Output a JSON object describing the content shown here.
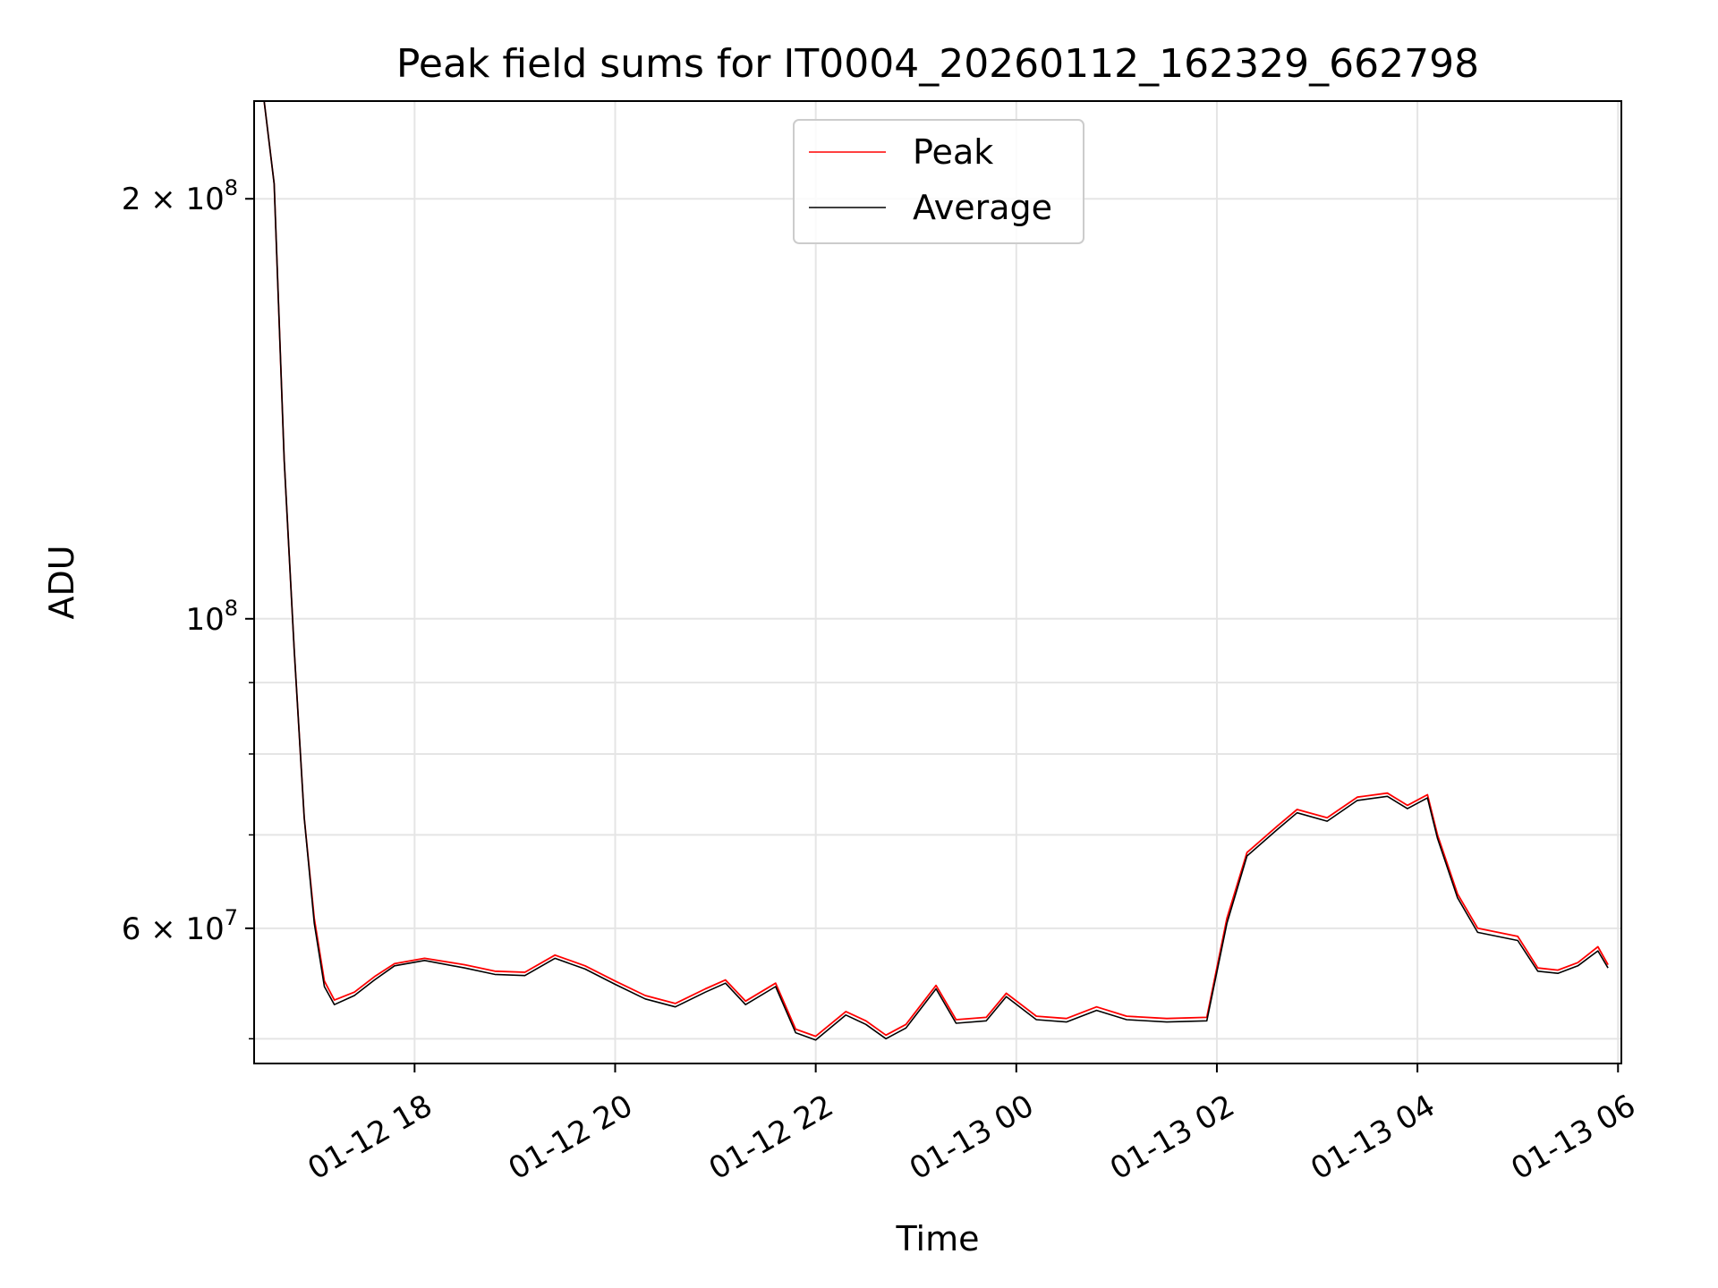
{
  "chart_data": {
    "type": "line",
    "title": "Peak field sums for IT0004_20260112_162329_662798",
    "xlabel": "Time",
    "ylabel": "ADU",
    "yscale": "log",
    "ylim": [
      48000000,
      235000000
    ],
    "xlim": [
      "2026-01-12 16:24",
      "2026-01-13 06:02"
    ],
    "grid": true,
    "legend_position": "top-center",
    "x_ticks": [
      "01-12 18",
      "01-12 20",
      "01-12 22",
      "01-13 00",
      "01-13 02",
      "01-13 04",
      "01-13 06"
    ],
    "x_tick_times": [
      "2026-01-12 18:00",
      "2026-01-12 20:00",
      "2026-01-12 22:00",
      "2026-01-13 00:00",
      "2026-01-13 02:00",
      "2026-01-13 04:00",
      "2026-01-13 06:00"
    ],
    "y_ticks_major": [
      {
        "value": 200000000,
        "mantissa": "2",
        "exp": "8"
      },
      {
        "value": 100000000,
        "mantissa": "",
        "exp": "8"
      },
      {
        "value": 60000000,
        "mantissa": "6",
        "exp": "7"
      }
    ],
    "y_ticks_minor": [
      50000000,
      70000000,
      80000000,
      90000000
    ],
    "series": [
      {
        "name": "Peak",
        "color": "#ff0000",
        "x": [
          "2026-01-12 16:30",
          "2026-01-12 16:36",
          "2026-01-12 16:42",
          "2026-01-12 16:48",
          "2026-01-12 16:54",
          "2026-01-12 17:00",
          "2026-01-12 17:06",
          "2026-01-12 17:12",
          "2026-01-12 17:24",
          "2026-01-12 17:36",
          "2026-01-12 17:48",
          "2026-01-12 18:06",
          "2026-01-12 18:30",
          "2026-01-12 18:48",
          "2026-01-12 19:06",
          "2026-01-12 19:24",
          "2026-01-12 19:42",
          "2026-01-12 20:00",
          "2026-01-12 20:18",
          "2026-01-12 20:36",
          "2026-01-12 20:54",
          "2026-01-12 21:06",
          "2026-01-12 21:18",
          "2026-01-12 21:36",
          "2026-01-12 21:48",
          "2026-01-12 22:00",
          "2026-01-12 22:18",
          "2026-01-12 22:30",
          "2026-01-12 22:42",
          "2026-01-12 22:54",
          "2026-01-12 23:12",
          "2026-01-12 23:24",
          "2026-01-12 23:42",
          "2026-01-12 23:54",
          "2026-01-13 00:12",
          "2026-01-13 00:30",
          "2026-01-13 00:48",
          "2026-01-13 01:06",
          "2026-01-13 01:30",
          "2026-01-13 01:54",
          "2026-01-13 02:06",
          "2026-01-13 02:18",
          "2026-01-13 02:36",
          "2026-01-13 02:48",
          "2026-01-13 03:06",
          "2026-01-13 03:24",
          "2026-01-13 03:42",
          "2026-01-13 03:54",
          "2026-01-13 04:06",
          "2026-01-13 04:12",
          "2026-01-13 04:24",
          "2026-01-13 04:36",
          "2026-01-13 05:00",
          "2026-01-13 05:12",
          "2026-01-13 05:24",
          "2026-01-13 05:36",
          "2026-01-13 05:48",
          "2026-01-13 05:54"
        ],
        "values": [
          235000000,
          205000000,
          130000000,
          95000000,
          72000000,
          61000000,
          55000000,
          53300000,
          54000000,
          55400000,
          56600000,
          57100000,
          56500000,
          55900000,
          55800000,
          57400000,
          56400000,
          55000000,
          53700000,
          53000000,
          54300000,
          55100000,
          53200000,
          54800000,
          50800000,
          50200000,
          52300000,
          51500000,
          50300000,
          51200000,
          54600000,
          51600000,
          51800000,
          53900000,
          51900000,
          51700000,
          52700000,
          51900000,
          51700000,
          51800000,
          61000000,
          68000000,
          71000000,
          73000000,
          72000000,
          74500000,
          75000000,
          73500000,
          74800000,
          70000000,
          63500000,
          60000000,
          59200000,
          56200000,
          56000000,
          56700000,
          58200000,
          56500000
        ]
      },
      {
        "name": "Average",
        "color": "#000000",
        "x": [
          "2026-01-12 16:30",
          "2026-01-12 16:36",
          "2026-01-12 16:42",
          "2026-01-12 16:48",
          "2026-01-12 16:54",
          "2026-01-12 17:00",
          "2026-01-12 17:06",
          "2026-01-12 17:12",
          "2026-01-12 17:24",
          "2026-01-12 17:36",
          "2026-01-12 17:48",
          "2026-01-12 18:06",
          "2026-01-12 18:30",
          "2026-01-12 18:48",
          "2026-01-12 19:06",
          "2026-01-12 19:24",
          "2026-01-12 19:42",
          "2026-01-12 20:00",
          "2026-01-12 20:18",
          "2026-01-12 20:36",
          "2026-01-12 20:54",
          "2026-01-12 21:06",
          "2026-01-12 21:18",
          "2026-01-12 21:36",
          "2026-01-12 21:48",
          "2026-01-12 22:00",
          "2026-01-12 22:18",
          "2026-01-12 22:30",
          "2026-01-12 22:42",
          "2026-01-12 22:54",
          "2026-01-12 23:12",
          "2026-01-12 23:24",
          "2026-01-12 23:42",
          "2026-01-12 23:54",
          "2026-01-13 00:12",
          "2026-01-13 00:30",
          "2026-01-13 00:48",
          "2026-01-13 01:06",
          "2026-01-13 01:30",
          "2026-01-13 01:54",
          "2026-01-13 02:06",
          "2026-01-13 02:18",
          "2026-01-13 02:36",
          "2026-01-13 02:48",
          "2026-01-13 03:06",
          "2026-01-13 03:24",
          "2026-01-13 03:42",
          "2026-01-13 03:54",
          "2026-01-13 04:06",
          "2026-01-13 04:12",
          "2026-01-13 04:24",
          "2026-01-13 04:36",
          "2026-01-13 05:00",
          "2026-01-13 05:12",
          "2026-01-13 05:24",
          "2026-01-13 05:36",
          "2026-01-13 05:48",
          "2026-01-13 05:54"
        ],
        "values": [
          235000000,
          205000000,
          130000000,
          95000000,
          72000000,
          60500000,
          54500000,
          52900000,
          53700000,
          55100000,
          56400000,
          56900000,
          56200000,
          55600000,
          55500000,
          57100000,
          56100000,
          54700000,
          53400000,
          52700000,
          54000000,
          54800000,
          52900000,
          54500000,
          50500000,
          49900000,
          52000000,
          51200000,
          50000000,
          50900000,
          54300000,
          51300000,
          51500000,
          53600000,
          51600000,
          51400000,
          52400000,
          51600000,
          51400000,
          51500000,
          60500000,
          67600000,
          70600000,
          72600000,
          71600000,
          74100000,
          74600000,
          73100000,
          74400000,
          69600000,
          63100000,
          59600000,
          58800000,
          55900000,
          55700000,
          56400000,
          57800000,
          56200000
        ]
      }
    ]
  }
}
